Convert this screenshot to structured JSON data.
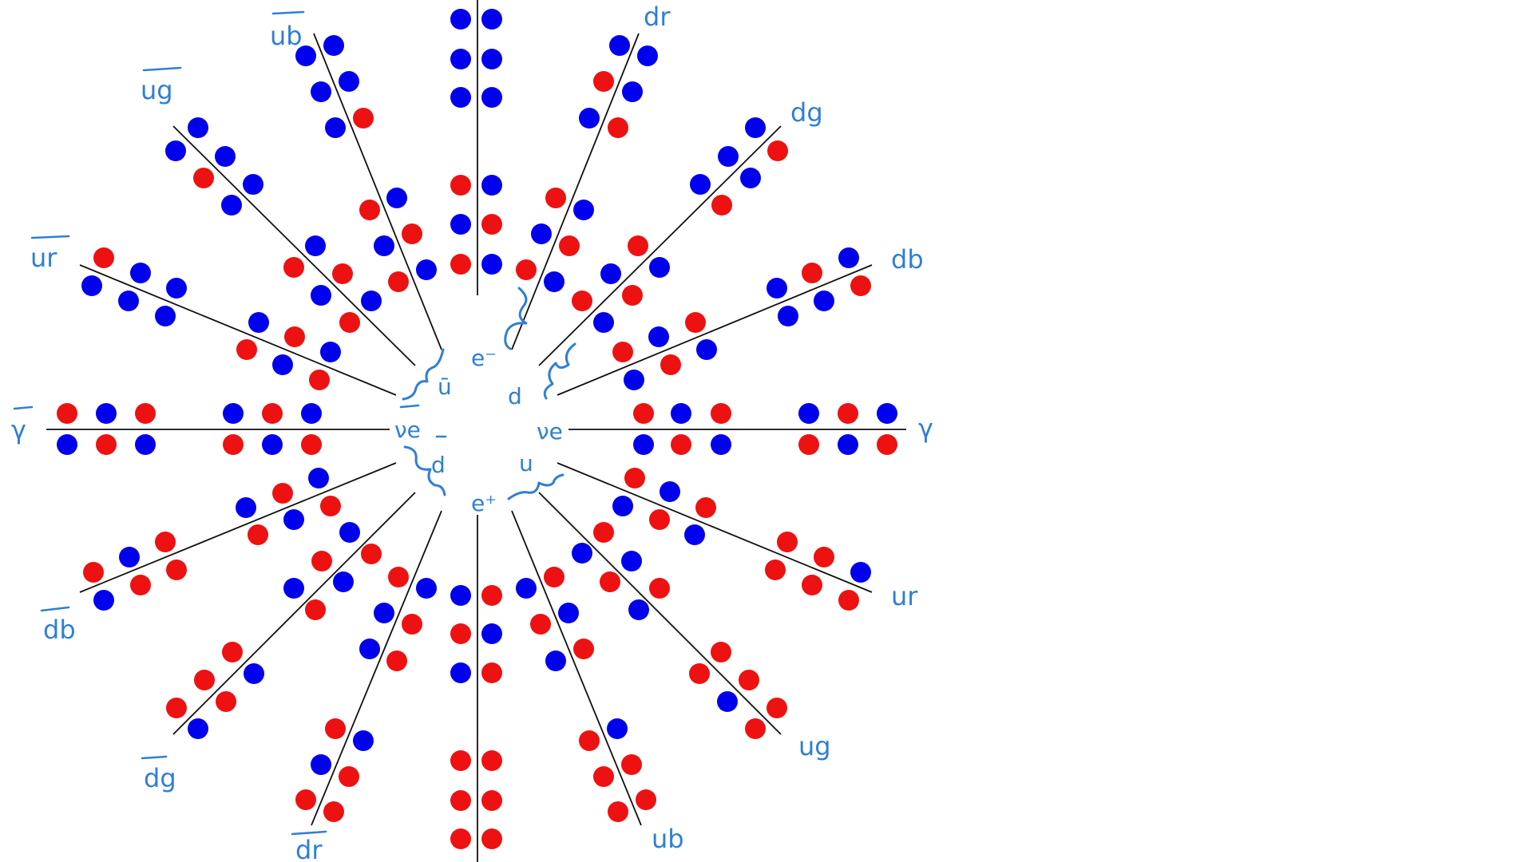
{
  "colors": {
    "blue_dot": "#0000ee",
    "red_dot": "#ee1111",
    "ink": "#2f7fd6",
    "line": "#111111"
  },
  "icons": {
    "brace": "curly-brace-icon"
  },
  "labels": {
    "gamma": "γ",
    "gamma_bar": "γ",
    "d_r": "dr",
    "d_g": "dg",
    "d_b": "db",
    "u_r": "ur",
    "u_g": "ug",
    "u_b": "ub",
    "ubar_b": "ub",
    "ubar_g": "ug",
    "ubar_r": "ur",
    "dbar_b": "db",
    "dbar_g": "dg",
    "dbar_r": "dr"
  },
  "center_labels": {
    "e_minus": "e⁻",
    "e_plus": "e⁺",
    "nu_e": "νe",
    "nu_e_bar": "νe",
    "u": "u",
    "u_bar": "ū",
    "d": "d",
    "d_bar": "d"
  }
}
